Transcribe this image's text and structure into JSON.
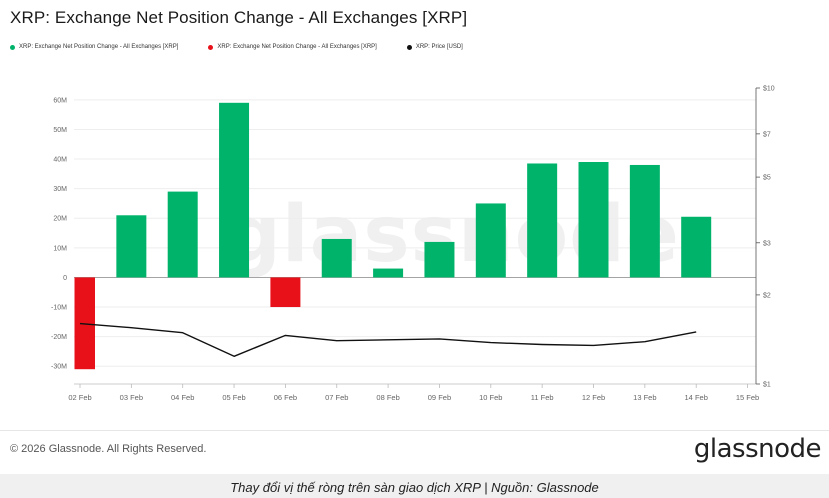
{
  "chart_data": {
    "type": "bar",
    "title": "XRP: Exchange Net Position Change - All Exchanges [XRP]",
    "legend": [
      {
        "label": "XRP: Exchange Net Position Change - All Exchanges [XRP]",
        "color": "#00b36b"
      },
      {
        "label": "XRP: Exchange Net Position Change - All Exchanges [XRP]",
        "color": "#e8111a"
      },
      {
        "label": "XRP: Price [USD]",
        "color": "#111111"
      }
    ],
    "x_ticks": [
      "02 Feb",
      "03 Feb",
      "04 Feb",
      "05 Feb",
      "06 Feb",
      "07 Feb",
      "08 Feb",
      "09 Feb",
      "10 Feb",
      "11 Feb",
      "12 Feb",
      "13 Feb",
      "14 Feb",
      "15 Feb"
    ],
    "y_left_ticks": [
      {
        "value": 60,
        "label": "60M"
      },
      {
        "value": 50,
        "label": "50M"
      },
      {
        "value": 40,
        "label": "40M"
      },
      {
        "value": 30,
        "label": "30M"
      },
      {
        "value": 20,
        "label": "20M"
      },
      {
        "value": 10,
        "label": "10M"
      },
      {
        "value": 0,
        "label": "0"
      },
      {
        "value": -10,
        "label": "-10M"
      },
      {
        "value": -20,
        "label": "-20M"
      },
      {
        "value": -30,
        "label": "-30M"
      }
    ],
    "y_left_range": [
      -36,
      64
    ],
    "y_right_ticks": [
      {
        "value": 10,
        "label": "$10"
      },
      {
        "value": 7,
        "label": "$7"
      },
      {
        "value": 5,
        "label": "$5"
      },
      {
        "value": 3,
        "label": "$3"
      },
      {
        "value": 2,
        "label": "$2"
      },
      {
        "value": 1,
        "label": "$1"
      }
    ],
    "y_right_scale": "log",
    "y_right_range": [
      1,
      10
    ],
    "net_position_millions": [
      -31,
      21,
      29,
      59,
      -10,
      13,
      3,
      12,
      25,
      38.5,
      39,
      38,
      20.5
    ],
    "price_usd": [
      1.6,
      1.55,
      1.49,
      1.24,
      1.46,
      1.4,
      1.41,
      1.42,
      1.38,
      1.36,
      1.35,
      1.39,
      1.5
    ],
    "positive_color": "#00b36b",
    "negative_color": "#e8111a",
    "price_color": "#111111"
  },
  "watermark": "glassnode",
  "footer": {
    "copyright": "© 2026 Glassnode. All Rights Reserved.",
    "brand": "glassnode"
  },
  "caption": "Thay đổi vị thế ròng trên sàn giao dịch XRP | Nguồn: Glassnode"
}
